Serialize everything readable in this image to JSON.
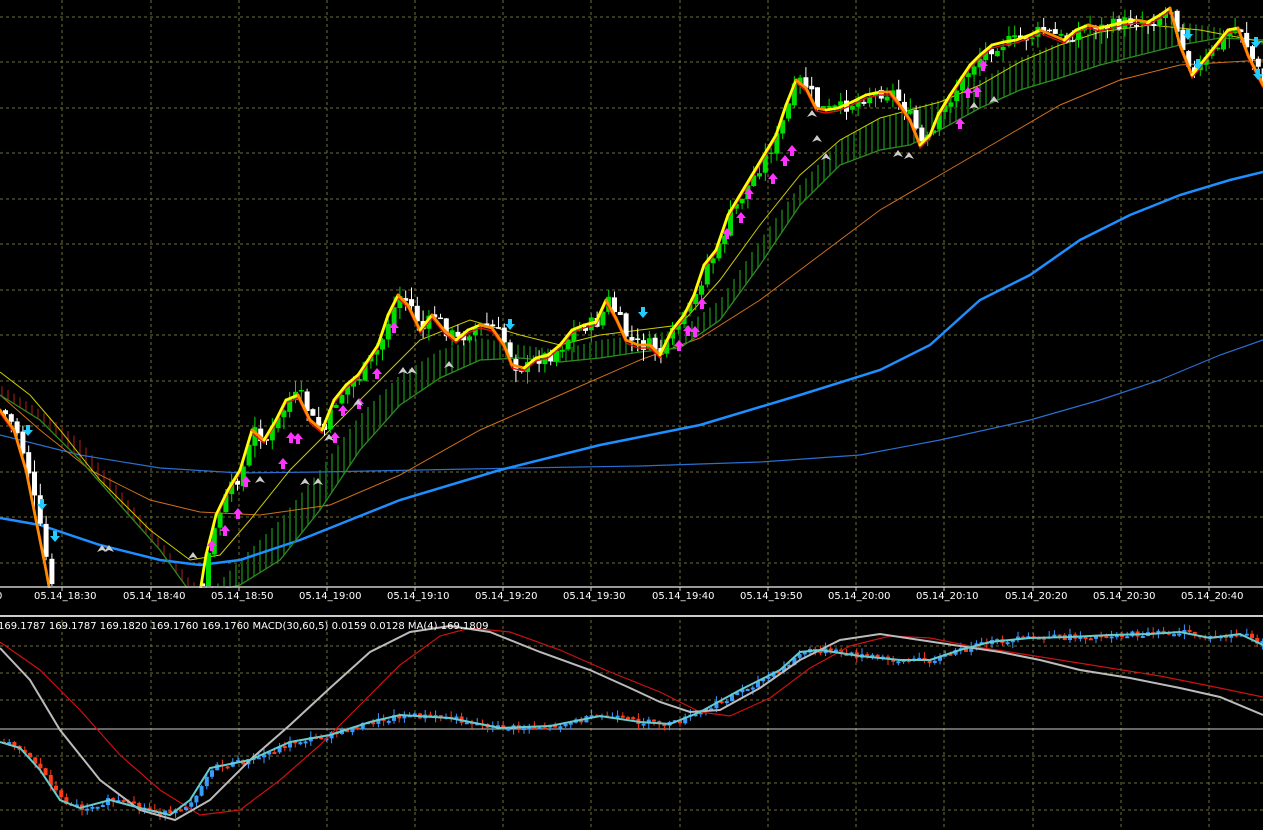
{
  "colors": {
    "background": "#000000",
    "grid": "#6e6e3a",
    "bull_candle": "#00dd00",
    "bear_candle": "#ffffff",
    "fast_ma": "#ffff00",
    "fast_ma_down": "#ff8c00",
    "ema_red": "#dd1010",
    "ema_green": "#2e8b22",
    "ema_thin_yellow": "#cccc00",
    "ema_orange": "#d0701a",
    "ema_blue_thick": "#1e8fff",
    "ema_blue_thin": "#2a6fd0",
    "cloud_up": "#0f5a0f",
    "cloud_down": "#5a0f0f",
    "arrow_buy": "#ff33ff",
    "arrow_sell": "#22ccff",
    "arrow_small": "#cccccc",
    "macd_main": "#bbbbbb",
    "macd_signal": "#cc1111",
    "macd_ma": "#66cccc",
    "macd_up": "#3a9bff",
    "macd_down": "#ff3a1a",
    "separator": "#cccccc"
  },
  "time_axis": {
    "labels": [
      "05.14_18:30",
      "05.14_18:40",
      "05.14_18:50",
      "05.14_19:00",
      "05.14_19:10",
      "05.14_19:20",
      "05.14_19:30",
      "05.14_19:40",
      "05.14_19:50",
      "05.14_20:00",
      "05.14_20:10",
      "05.14_20:20",
      "05.14_20:30",
      "05.14_20:40"
    ]
  },
  "indicator_header": {
    "text": "169.1787 169.1787 169.1820 169.1760 169.1760   MACD(30,60,5)  0.0159 0.0128   MA(4)  169.1809"
  },
  "chart_data": {
    "type": "candlestick",
    "title": "",
    "xlabel": "",
    "ylabel": "",
    "grid": true,
    "x": [
      "05.14_18:30",
      "05.14_18:40",
      "05.14_18:50",
      "05.14_19:00",
      "05.14_19:10",
      "05.14_19:20",
      "05.14_19:30",
      "05.14_19:40",
      "05.14_19:50",
      "05.14_20:00",
      "05.14_20:10",
      "05.14_20:20",
      "05.14_20:30",
      "05.14_20:40"
    ],
    "close": [
      169.119,
      169.116,
      169.13,
      169.14,
      169.155,
      169.154,
      169.154,
      169.153,
      169.175,
      169.181,
      169.18,
      169.186,
      169.19,
      169.183
    ],
    "indicators": [
      {
        "name": "MACD(30,60,5)",
        "values": [
          0.0159,
          0.0128
        ]
      },
      {
        "name": "MA(4)",
        "values": [
          169.1809
        ]
      }
    ]
  }
}
